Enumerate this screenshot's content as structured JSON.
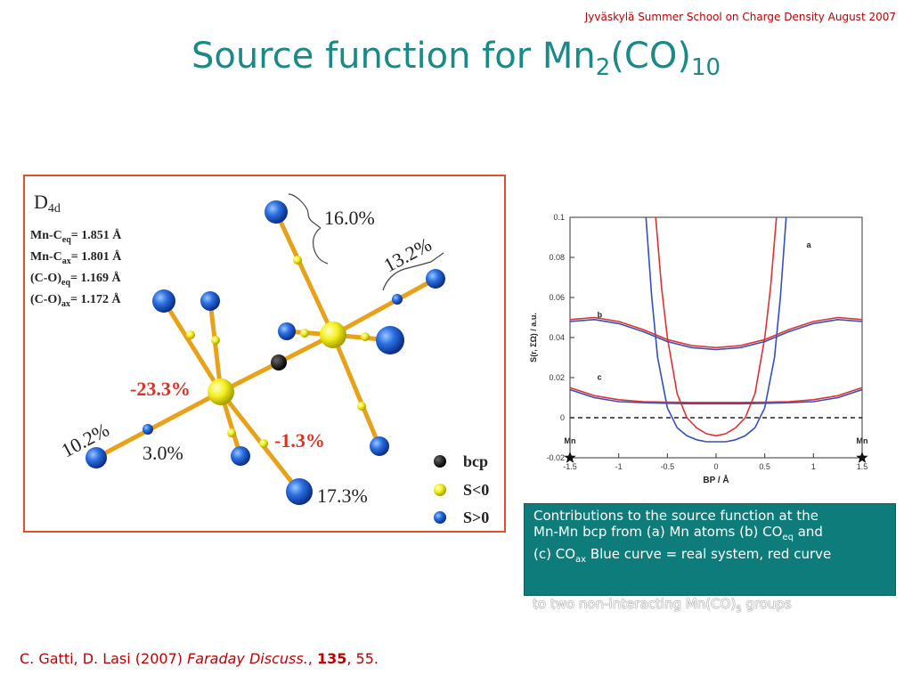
{
  "header": {
    "conference": "Jyväskylä Summer School  on Charge Density August 2007"
  },
  "title": {
    "main": "Source function for Mn",
    "sub1": "2",
    "mid": "(CO)",
    "sub2": "10"
  },
  "structure": {
    "symmetry": "D",
    "symmetry_sub": "4d",
    "bonds": [
      {
        "label": "Mn-C",
        "sub": "eq",
        "value": "=  1.851 Å"
      },
      {
        "label": "Mn-C",
        "sub": "ax",
        "value": "=  1.801 Å"
      },
      {
        "label": "(C-O)",
        "sub": "eq",
        "value": "= 1.169 Å"
      },
      {
        "label": "(C-O)",
        "sub": "ax",
        "value": "= 1.172 Å"
      }
    ],
    "percentages": {
      "top": "16.0%",
      "top_right": "13.2%",
      "mn_left": "-23.3%",
      "bottom_left": "10.2%",
      "bottom_mid": "3.0%",
      "mn_right": "-1.3%",
      "bottom_right": "17.3%"
    },
    "legend": [
      {
        "label": "bcp",
        "color": "#000000"
      },
      {
        "label": "S<0",
        "color": "#f4ef1e"
      },
      {
        "label": "S>0",
        "color": "#2b6fe0"
      }
    ]
  },
  "chart_data": {
    "type": "line",
    "ylabel": "S(r, ΣΩ) / a.u.",
    "xlabel": "BP / Å",
    "xlim": [
      -1.5,
      1.5
    ],
    "ylim": [
      -0.02,
      0.1
    ],
    "xticks": [
      "-1.5",
      "-1",
      "-0.5",
      "0",
      "0.5",
      "1",
      "1.5"
    ],
    "yticks": [
      "-0.02",
      "0",
      "0.02",
      "0.04",
      "0.06",
      "0.08",
      "0.1"
    ],
    "curve_labels": [
      "a",
      "b",
      "c"
    ],
    "atom_labels": [
      "Mn",
      "Mn"
    ],
    "series": [
      {
        "name": "a",
        "color": "#3050c0",
        "x": [
          -0.72,
          -0.66,
          -0.6,
          -0.5,
          -0.4,
          -0.3,
          -0.2,
          -0.1,
          0,
          0.1,
          0.2,
          0.3,
          0.4,
          0.5,
          0.6,
          0.66,
          0.72
        ],
        "y": [
          0.1,
          0.06,
          0.03,
          0.005,
          -0.005,
          -0.009,
          -0.011,
          -0.012,
          -0.012,
          -0.012,
          -0.011,
          -0.009,
          -0.005,
          0.005,
          0.03,
          0.06,
          0.1
        ]
      },
      {
        "name": "a",
        "color": "#e03030",
        "x": [
          -0.62,
          -0.56,
          -0.5,
          -0.4,
          -0.3,
          -0.2,
          -0.1,
          0,
          0.1,
          0.2,
          0.3,
          0.4,
          0.5,
          0.56,
          0.62
        ],
        "y": [
          0.1,
          0.065,
          0.04,
          0.012,
          0.0,
          -0.005,
          -0.008,
          -0.009,
          -0.008,
          -0.005,
          0.0,
          0.012,
          0.04,
          0.065,
          0.1
        ]
      },
      {
        "name": "b",
        "color": "#3050c0",
        "x": [
          -1.5,
          -1.25,
          -1.0,
          -0.75,
          -0.5,
          -0.25,
          0,
          0.25,
          0.5,
          0.75,
          1.0,
          1.25,
          1.5
        ],
        "y": [
          0.048,
          0.049,
          0.047,
          0.043,
          0.038,
          0.035,
          0.034,
          0.035,
          0.038,
          0.043,
          0.047,
          0.049,
          0.048
        ]
      },
      {
        "name": "b",
        "color": "#e03030",
        "x": [
          -1.5,
          -1.25,
          -1.0,
          -0.75,
          -0.5,
          -0.25,
          0,
          0.25,
          0.5,
          0.75,
          1.0,
          1.25,
          1.5
        ],
        "y": [
          0.049,
          0.05,
          0.048,
          0.044,
          0.039,
          0.036,
          0.035,
          0.036,
          0.039,
          0.044,
          0.048,
          0.05,
          0.049
        ]
      },
      {
        "name": "c",
        "color": "#3050c0",
        "x": [
          -1.5,
          -1.25,
          -1.0,
          -0.75,
          -0.5,
          -0.25,
          0,
          0.25,
          0.5,
          0.75,
          1.0,
          1.25,
          1.5
        ],
        "y": [
          0.014,
          0.01,
          0.008,
          0.0075,
          0.0072,
          0.007,
          0.007,
          0.007,
          0.0072,
          0.0075,
          0.008,
          0.01,
          0.014
        ]
      },
      {
        "name": "c",
        "color": "#e03030",
        "x": [
          -1.5,
          -1.25,
          -1.0,
          -0.75,
          -0.5,
          -0.25,
          0,
          0.25,
          0.5,
          0.75,
          1.0,
          1.25,
          1.5
        ],
        "y": [
          0.015,
          0.011,
          0.009,
          0.008,
          0.0078,
          0.0076,
          0.0076,
          0.0076,
          0.0078,
          0.008,
          0.009,
          0.011,
          0.015
        ]
      }
    ]
  },
  "caption": {
    "line1": "Contributions to the source function at the",
    "line2a": "Mn-Mn bcp from (a) Mn atoms (b) CO",
    "line2sub": "eq",
    "line2b": " and",
    "line3a": "(c) CO",
    "line3sub": "ax",
    "line3b": "  Blue curve = real system, red curve",
    "overflow_a": "to two non-interacting Mn(CO)",
    "overflow_sub": "5",
    "overflow_b": " groups"
  },
  "citation": {
    "authors": "C. Gatti, D. Lasi (2007) ",
    "journal": "Faraday Discuss.",
    "sep": ", ",
    "volume": "135",
    "pages": ", 55."
  }
}
